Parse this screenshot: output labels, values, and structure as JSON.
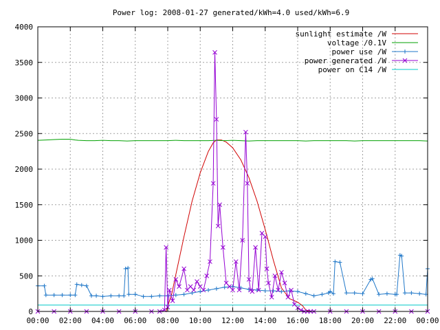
{
  "chart_data": {
    "type": "line",
    "title": "Power log: 2008-01-27 generated/kWh=4.0 used/kWh=6.9",
    "xlabel": "",
    "ylabel": "",
    "grid": true,
    "legend_position": "top-right",
    "xlim": [
      0,
      24
    ],
    "ylim": [
      0,
      4000
    ],
    "x_ticks": [
      0,
      2,
      4,
      6,
      8,
      10,
      12,
      14,
      16,
      18,
      20,
      22,
      24
    ],
    "x_tick_labels": [
      "00:00",
      "02:00",
      "04:00",
      "06:00",
      "08:00",
      "10:00",
      "12:00",
      "14:00",
      "16:00",
      "18:00",
      "20:00",
      "22:00",
      "00:00"
    ],
    "y_ticks": [
      0,
      500,
      1000,
      1500,
      2000,
      2500,
      3000,
      3500,
      4000
    ],
    "y_tick_labels": [
      "0",
      "500",
      "1000",
      "1500",
      "2000",
      "2500",
      "3000",
      "3500",
      "4000"
    ],
    "series": [
      {
        "name": "sunlight estimate /W",
        "color": "#d00000",
        "style": "line",
        "x": [
          7.9,
          8.25,
          8.5,
          9.0,
          9.5,
          10.0,
          10.5,
          10.8,
          11.0,
          11.3,
          11.6,
          12.0,
          12.5,
          13.0,
          13.5,
          14.0,
          14.5,
          15.0,
          15.5,
          15.8,
          16.0,
          16.3,
          16.5,
          16.8
        ],
        "y": [
          0,
          250,
          520,
          1050,
          1550,
          1950,
          2250,
          2370,
          2410,
          2410,
          2380,
          2300,
          2130,
          1880,
          1550,
          1150,
          720,
          330,
          180,
          150,
          130,
          80,
          20,
          0
        ]
      },
      {
        "name": "voltage /0.1V",
        "color": "#00a000",
        "style": "line",
        "x": [
          0,
          0.5,
          1,
          1.5,
          2,
          2.3,
          2.5,
          3,
          3.5,
          4,
          4.5,
          5,
          5.5,
          6,
          6.5,
          7,
          7.5,
          8,
          8.5,
          9,
          9.5,
          10,
          10.5,
          11,
          11.5,
          12,
          12.5,
          13,
          13.5,
          14,
          14.5,
          15,
          15.5,
          16,
          16.5,
          17,
          17.5,
          18,
          18.5,
          19,
          19.5,
          20,
          20.5,
          21,
          21.5,
          22,
          22.5,
          23,
          23.5,
          24
        ],
        "y": [
          2405,
          2410,
          2415,
          2420,
          2420,
          2410,
          2405,
          2400,
          2400,
          2405,
          2400,
          2400,
          2395,
          2400,
          2400,
          2400,
          2400,
          2400,
          2405,
          2400,
          2400,
          2400,
          2400,
          2405,
          2400,
          2405,
          2400,
          2395,
          2400,
          2400,
          2400,
          2400,
          2400,
          2400,
          2395,
          2400,
          2400,
          2400,
          2400,
          2400,
          2395,
          2400,
          2400,
          2400,
          2400,
          2400,
          2400,
          2400,
          2400,
          2395
        ]
      },
      {
        "name": "power use /W",
        "color": "#1f77c8",
        "style": "linepoints",
        "x": [
          0,
          0.4,
          0.5,
          1.0,
          1.5,
          2.0,
          2.3,
          2.4,
          2.7,
          3.0,
          3.3,
          3.6,
          4.0,
          4.5,
          5.0,
          5.3,
          5.4,
          5.55,
          5.6,
          6.0,
          6.5,
          7.0,
          7.5,
          8.0,
          8.5,
          9.0,
          9.5,
          10.0,
          10.5,
          11.0,
          11.5,
          12.0,
          12.5,
          13.0,
          13.5,
          14.0,
          14.5,
          15.0,
          15.5,
          16.0,
          16.5,
          17.0,
          17.5,
          17.9,
          18.0,
          18.2,
          18.3,
          18.6,
          19.0,
          19.5,
          20.0,
          20.5,
          20.6,
          21.0,
          21.5,
          22.0,
          22.1,
          22.3,
          22.4,
          22.6,
          23.0,
          23.5,
          23.9,
          24.0
        ],
        "y": [
          360,
          360,
          230,
          230,
          230,
          230,
          230,
          380,
          370,
          360,
          220,
          220,
          210,
          220,
          220,
          220,
          600,
          610,
          240,
          240,
          210,
          210,
          220,
          220,
          230,
          240,
          260,
          280,
          300,
          320,
          340,
          350,
          330,
          310,
          300,
          290,
          290,
          280,
          290,
          280,
          250,
          220,
          240,
          260,
          280,
          250,
          700,
          690,
          260,
          260,
          250,
          450,
          460,
          240,
          250,
          240,
          240,
          790,
          780,
          260,
          260,
          250,
          240,
          600
        ]
      },
      {
        "name": "power generated /W",
        "color": "#9400d3",
        "style": "linepoints",
        "x": [
          0,
          1,
          2,
          3,
          4,
          5,
          6,
          7,
          7.5,
          7.8,
          7.9,
          8.0,
          8.1,
          8.3,
          8.5,
          8.7,
          9.0,
          9.2,
          9.4,
          9.6,
          9.8,
          10.0,
          10.2,
          10.4,
          10.6,
          10.8,
          10.9,
          11.0,
          11.1,
          11.2,
          11.4,
          11.6,
          11.8,
          12.0,
          12.2,
          12.4,
          12.6,
          12.8,
          12.9,
          13.0,
          13.1,
          13.2,
          13.4,
          13.6,
          13.8,
          14.0,
          14.1,
          14.2,
          14.4,
          14.6,
          14.8,
          15.0,
          15.2,
          15.4,
          15.6,
          15.8,
          16.0,
          16.2,
          16.4,
          16.6,
          16.8,
          17.0,
          18,
          19,
          20,
          21,
          22,
          23,
          24
        ],
        "y": [
          0,
          0,
          0,
          0,
          0,
          0,
          0,
          0,
          0,
          20,
          900,
          60,
          300,
          150,
          450,
          350,
          600,
          300,
          350,
          300,
          420,
          350,
          300,
          500,
          700,
          1800,
          3640,
          2700,
          1200,
          1500,
          900,
          400,
          350,
          300,
          700,
          300,
          1000,
          2520,
          1800,
          450,
          300,
          280,
          900,
          300,
          1100,
          1050,
          600,
          400,
          200,
          500,
          300,
          550,
          400,
          200,
          300,
          100,
          50,
          20,
          0,
          0,
          0,
          0,
          0,
          0,
          0,
          0,
          0,
          0,
          0
        ]
      },
      {
        "name": "power on C14 /W",
        "color": "#00c8c8",
        "style": "line",
        "x": [
          0,
          2,
          4,
          6,
          8,
          10,
          12,
          14,
          16,
          18,
          20,
          22,
          24
        ],
        "y": [
          90,
          90,
          90,
          90,
          90,
          90,
          90,
          90,
          90,
          90,
          90,
          90,
          90
        ]
      }
    ]
  }
}
